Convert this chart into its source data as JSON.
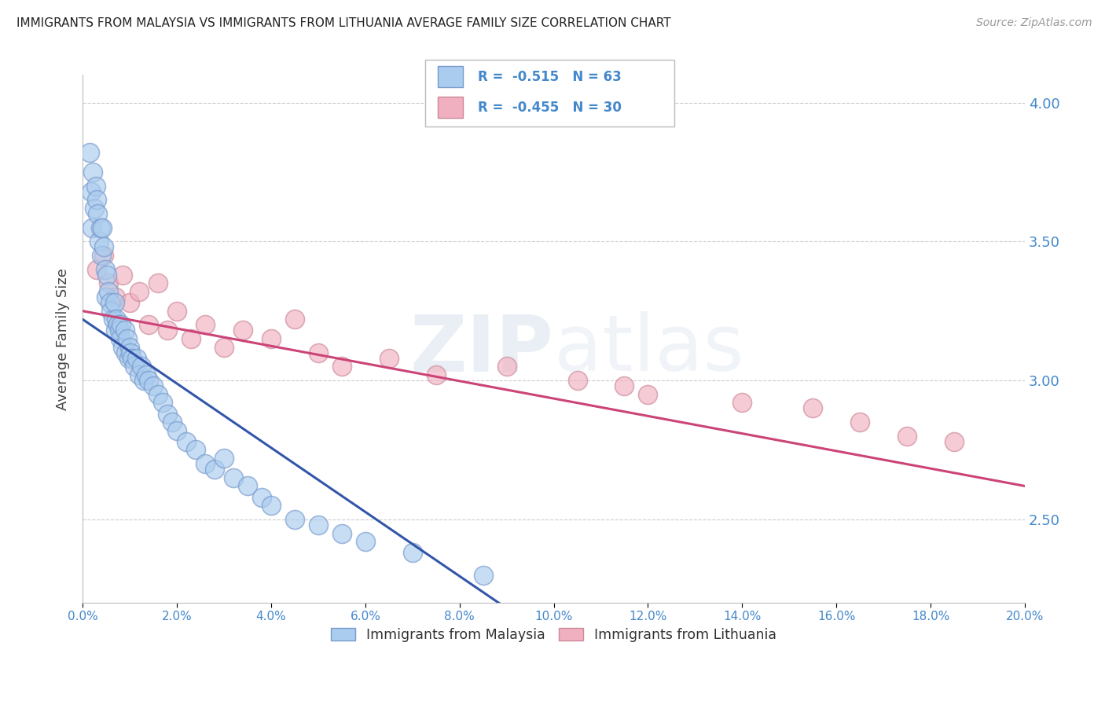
{
  "title": "IMMIGRANTS FROM MALAYSIA VS IMMIGRANTS FROM LITHUANIA AVERAGE FAMILY SIZE CORRELATION CHART",
  "source": "Source: ZipAtlas.com",
  "ylabel": "Average Family Size",
  "xlim": [
    0.0,
    20.0
  ],
  "ylim": [
    2.2,
    4.1
  ],
  "yticks": [
    2.5,
    3.0,
    3.5,
    4.0
  ],
  "xticks": [
    0.0,
    2.0,
    4.0,
    6.0,
    8.0,
    10.0,
    12.0,
    14.0,
    16.0,
    18.0,
    20.0
  ],
  "malaysia_color": "#aaccee",
  "malaysia_edge": "#7799cc",
  "lithuania_color": "#f0b0c0",
  "lithuania_edge": "#cc8899",
  "malaysia_line_color": "#3355aa",
  "lithuania_line_color": "#cc4477",
  "malaysia_R": -0.515,
  "malaysia_N": 63,
  "lithuania_R": -0.455,
  "lithuania_N": 30,
  "axis_color": "#4488cc",
  "grid_color": "#cccccc",
  "malaysia_scatter_x": [
    0.15,
    0.18,
    0.2,
    0.22,
    0.25,
    0.28,
    0.3,
    0.32,
    0.35,
    0.38,
    0.4,
    0.42,
    0.45,
    0.48,
    0.5,
    0.52,
    0.55,
    0.58,
    0.6,
    0.65,
    0.68,
    0.7,
    0.72,
    0.75,
    0.78,
    0.8,
    0.82,
    0.85,
    0.9,
    0.92,
    0.95,
    0.98,
    1.0,
    1.02,
    1.05,
    1.1,
    1.15,
    1.2,
    1.25,
    1.3,
    1.35,
    1.4,
    1.5,
    1.6,
    1.7,
    1.8,
    1.9,
    2.0,
    2.2,
    2.4,
    2.6,
    2.8,
    3.0,
    3.2,
    3.5,
    3.8,
    4.0,
    4.5,
    5.0,
    5.5,
    6.0,
    7.0,
    8.5
  ],
  "malaysia_scatter_y": [
    3.82,
    3.68,
    3.55,
    3.75,
    3.62,
    3.7,
    3.65,
    3.6,
    3.5,
    3.55,
    3.45,
    3.55,
    3.48,
    3.4,
    3.3,
    3.38,
    3.32,
    3.28,
    3.25,
    3.22,
    3.28,
    3.18,
    3.22,
    3.2,
    3.18,
    3.15,
    3.2,
    3.12,
    3.18,
    3.1,
    3.15,
    3.08,
    3.12,
    3.1,
    3.08,
    3.05,
    3.08,
    3.02,
    3.05,
    3.0,
    3.02,
    3.0,
    2.98,
    2.95,
    2.92,
    2.88,
    2.85,
    2.82,
    2.78,
    2.75,
    2.7,
    2.68,
    2.72,
    2.65,
    2.62,
    2.58,
    2.55,
    2.5,
    2.48,
    2.45,
    2.42,
    2.38,
    2.3
  ],
  "lithuania_scatter_x": [
    0.3,
    0.45,
    0.55,
    0.7,
    0.85,
    1.0,
    1.2,
    1.4,
    1.6,
    1.8,
    2.0,
    2.3,
    2.6,
    3.0,
    3.4,
    4.0,
    4.5,
    5.0,
    5.5,
    6.5,
    7.5,
    9.0,
    10.5,
    12.0,
    14.0,
    15.5,
    16.5,
    17.5,
    11.5,
    18.5
  ],
  "lithuania_scatter_y": [
    3.4,
    3.45,
    3.35,
    3.3,
    3.38,
    3.28,
    3.32,
    3.2,
    3.35,
    3.18,
    3.25,
    3.15,
    3.2,
    3.12,
    3.18,
    3.15,
    3.22,
    3.1,
    3.05,
    3.08,
    3.02,
    3.05,
    3.0,
    2.95,
    2.92,
    2.9,
    2.85,
    2.8,
    2.98,
    2.78
  ],
  "malaysia_line_x0": 0.0,
  "malaysia_line_y0": 3.22,
  "malaysia_line_x1": 9.0,
  "malaysia_line_y1": 2.18,
  "lithuania_line_x0": 0.0,
  "lithuania_line_y0": 3.25,
  "lithuania_line_x1": 20.0,
  "lithuania_line_y1": 2.62
}
